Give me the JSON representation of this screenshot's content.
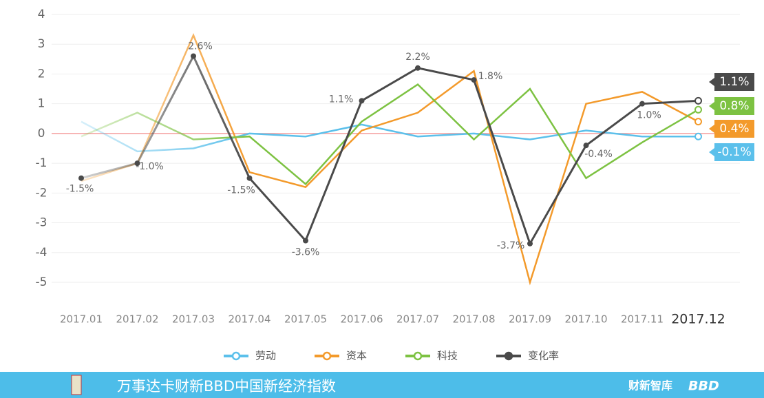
{
  "chart_data": {
    "type": "line",
    "categories": [
      "2017.01",
      "2017.02",
      "2017.03",
      "2017.04",
      "2017.05",
      "2017.06",
      "2017.07",
      "2017.08",
      "2017.09",
      "2017.10",
      "2017.11",
      "2017.12"
    ],
    "ylim": [
      -5,
      4
    ],
    "yticks": [
      -5,
      -4,
      -3,
      -2,
      -1,
      0,
      1,
      2,
      3,
      4
    ],
    "grid": true,
    "legend": "bottom",
    "series": [
      {
        "name": "劳动",
        "color": "#5bc0eb",
        "values": [
          0.4,
          -0.6,
          -0.5,
          0,
          -0.1,
          0.3,
          -0.1,
          0,
          -0.2,
          0.1,
          -0.1,
          -0.1
        ],
        "end_label": "-0.1%"
      },
      {
        "name": "资本",
        "color": "#f39a2b",
        "values": [
          -1.6,
          -1.0,
          3.3,
          -1.3,
          -1.8,
          0.1,
          0.7,
          2.1,
          -5.0,
          1.0,
          1.4,
          0.4
        ],
        "end_label": "0.4%"
      },
      {
        "name": "科技",
        "color": "#7dc242",
        "values": [
          -0.1,
          0.7,
          -0.2,
          -0.1,
          -1.7,
          0.4,
          1.65,
          -0.2,
          1.5,
          -1.5,
          -0.3,
          0.8
        ],
        "end_label": "0.8%"
      },
      {
        "name": "变化率",
        "color": "#4a4a4a",
        "values": [
          -1.5,
          -1.0,
          2.6,
          -1.5,
          -3.6,
          1.1,
          2.2,
          1.8,
          -3.7,
          -0.4,
          1.0,
          1.1
        ],
        "value_labels": [
          "-1.5%",
          "-1.0%",
          "2.6%",
          "-1.5%",
          "-3.6%",
          "1.1%",
          "2.2%",
          "1.8%",
          "-3.7%",
          "-0.4%",
          "1.0%",
          "1.1%"
        ]
      }
    ]
  },
  "footer": {
    "title": "万事达卡财新BBD中国新经济指数",
    "logo1": "财新智库",
    "logo2": "BBD"
  }
}
